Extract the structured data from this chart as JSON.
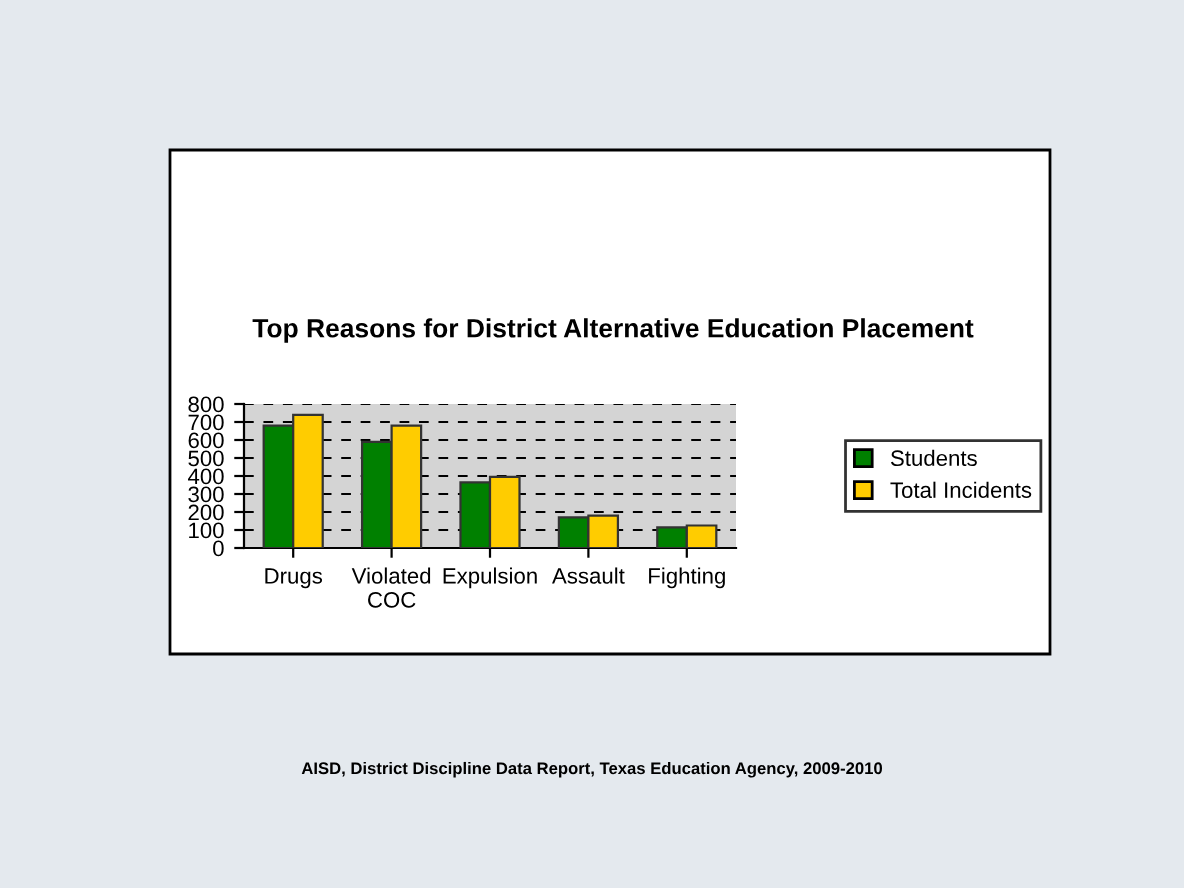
{
  "chart_data": {
    "type": "bar",
    "title": "Top Reasons for District Alternative Education Placement",
    "categories": [
      "Drugs",
      "Violated\nCOC",
      "Expulsion",
      "Assault",
      "Fighting"
    ],
    "series": [
      {
        "name": "Students",
        "color": "#008000",
        "values": [
          680,
          590,
          365,
          170,
          115
        ]
      },
      {
        "name": "Total Incidents",
        "color": "#ffcc00",
        "values": [
          740,
          680,
          395,
          180,
          125
        ]
      }
    ],
    "ylim": [
      0,
      800
    ],
    "yticks": [
      0,
      100,
      200,
      300,
      400,
      500,
      600,
      700,
      800
    ],
    "grid": "y",
    "legend": "right",
    "annotations": [
      "AISD, District Discipline Data Report, Texas Education Agency, 2009-2010"
    ]
  }
}
